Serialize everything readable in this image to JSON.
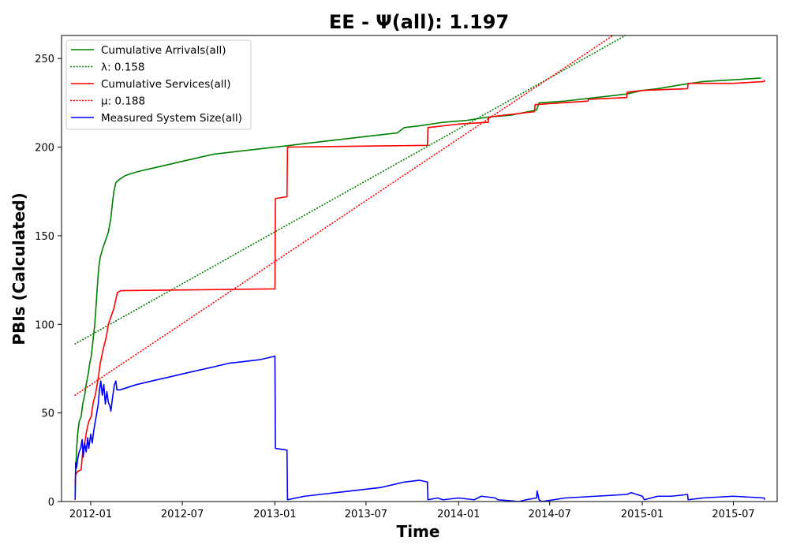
{
  "chart_data": {
    "type": "line",
    "title": "EE -  Ψ(all): 1.197",
    "xlabel": "Time",
    "ylabel": "PBIs (Calculated)",
    "xlim": [
      "2011-11-04",
      "2015-09-26"
    ],
    "ylim": [
      0,
      263
    ],
    "x_ticks": [
      "2012-01",
      "2012-07",
      "2013-01",
      "2013-07",
      "2014-01",
      "2014-07",
      "2015-01",
      "2015-07"
    ],
    "y_ticks": [
      0,
      50,
      100,
      150,
      200,
      250
    ],
    "grid": false,
    "legend_position": "top-left",
    "series": [
      {
        "name": "Cumulative Arrivals(all)",
        "color": "#008000",
        "style": "solid",
        "points": [
          [
            "2011-12-01",
            1
          ],
          [
            "2011-12-02",
            17
          ],
          [
            "2011-12-04",
            30
          ],
          [
            "2011-12-06",
            38
          ],
          [
            "2011-12-09",
            45
          ],
          [
            "2011-12-13",
            48
          ],
          [
            "2011-12-16",
            55
          ],
          [
            "2011-12-20",
            60
          ],
          [
            "2011-12-23",
            66
          ],
          [
            "2011-12-27",
            72
          ],
          [
            "2011-12-30",
            78
          ],
          [
            "2012-01-02",
            82
          ],
          [
            "2012-01-06",
            92
          ],
          [
            "2012-01-09",
            100
          ],
          [
            "2012-01-12",
            112
          ],
          [
            "2012-01-15",
            125
          ],
          [
            "2012-01-17",
            132
          ],
          [
            "2012-01-20",
            138
          ],
          [
            "2012-01-25",
            143
          ],
          [
            "2012-01-30",
            147
          ],
          [
            "2012-02-05",
            152
          ],
          [
            "2012-02-10",
            160
          ],
          [
            "2012-02-13",
            168
          ],
          [
            "2012-02-16",
            175
          ],
          [
            "2012-02-20",
            180
          ],
          [
            "2012-02-28",
            182
          ],
          [
            "2012-03-10",
            184
          ],
          [
            "2012-04-01",
            186
          ],
          [
            "2012-05-01",
            188
          ],
          [
            "2012-06-01",
            190
          ],
          [
            "2012-07-01",
            192
          ],
          [
            "2012-08-01",
            194
          ],
          [
            "2012-09-01",
            196
          ],
          [
            "2012-10-01",
            197
          ],
          [
            "2012-11-01",
            198
          ],
          [
            "2012-12-01",
            199
          ],
          [
            "2013-01-01",
            200
          ],
          [
            "2013-02-01",
            201
          ],
          [
            "2013-03-01",
            202
          ],
          [
            "2013-04-01",
            203
          ],
          [
            "2013-05-01",
            204
          ],
          [
            "2013-06-01",
            205
          ],
          [
            "2013-07-01",
            206
          ],
          [
            "2013-08-01",
            207
          ],
          [
            "2013-09-01",
            208
          ],
          [
            "2013-09-15",
            211
          ],
          [
            "2013-10-15",
            212
          ],
          [
            "2013-12-01",
            214
          ],
          [
            "2014-01-15",
            215
          ],
          [
            "2014-03-01",
            217
          ],
          [
            "2014-04-15",
            218
          ],
          [
            "2014-06-05",
            221
          ],
          [
            "2014-06-10",
            225
          ],
          [
            "2014-08-01",
            226
          ],
          [
            "2014-10-01",
            228
          ],
          [
            "2014-12-01",
            230
          ],
          [
            "2015-01-01",
            232
          ],
          [
            "2015-02-01",
            233
          ],
          [
            "2015-03-15",
            235
          ],
          [
            "2015-05-01",
            237
          ],
          [
            "2015-07-01",
            238
          ],
          [
            "2015-08-25",
            239
          ]
        ]
      },
      {
        "name": "λ: 0.158",
        "color": "#008000",
        "style": "dotted",
        "points": [
          [
            "2011-12-01",
            89
          ],
          [
            "2015-09-26",
            311
          ]
        ]
      },
      {
        "name": "Cumulative Services(all)",
        "color": "#ff0000",
        "style": "solid",
        "points": [
          [
            "2011-12-01",
            10
          ],
          [
            "2011-12-02",
            15
          ],
          [
            "2011-12-06",
            17
          ],
          [
            "2011-12-13",
            18
          ],
          [
            "2011-12-16",
            28
          ],
          [
            "2011-12-20",
            33
          ],
          [
            "2011-12-24",
            40
          ],
          [
            "2011-12-28",
            45
          ],
          [
            "2012-01-02",
            48
          ],
          [
            "2012-01-06",
            56
          ],
          [
            "2012-01-10",
            60
          ],
          [
            "2012-01-15",
            68
          ],
          [
            "2012-01-20",
            78
          ],
          [
            "2012-01-25",
            85
          ],
          [
            "2012-02-01",
            93
          ],
          [
            "2012-02-05",
            100
          ],
          [
            "2012-02-10",
            104
          ],
          [
            "2012-02-16",
            109
          ],
          [
            "2012-02-23",
            118
          ],
          [
            "2012-03-01",
            119
          ],
          [
            "2013-01-01",
            120
          ],
          [
            "2013-01-02",
            171
          ],
          [
            "2013-01-25",
            172
          ],
          [
            "2013-01-26",
            200
          ],
          [
            "2013-10-31",
            201
          ],
          [
            "2013-11-01",
            211
          ],
          [
            "2014-01-01",
            213
          ],
          [
            "2014-03-01",
            214
          ],
          [
            "2014-03-02",
            217
          ],
          [
            "2014-06-01",
            220
          ],
          [
            "2014-06-02",
            224
          ],
          [
            "2014-09-15",
            226
          ],
          [
            "2014-09-16",
            227
          ],
          [
            "2014-12-01",
            228
          ],
          [
            "2014-12-02",
            231
          ],
          [
            "2015-01-01",
            232
          ],
          [
            "2015-04-01",
            233
          ],
          [
            "2015-04-02",
            236
          ],
          [
            "2015-07-01",
            236
          ],
          [
            "2015-08-31",
            237
          ],
          [
            "2015-09-01",
            238
          ]
        ]
      },
      {
        "name": "μ: 0.188",
        "color": "#ff0000",
        "style": "dotted",
        "points": [
          [
            "2011-12-01",
            60
          ],
          [
            "2015-09-26",
            325
          ]
        ]
      },
      {
        "name": "Measured System Size(all)",
        "color": "#0000ff",
        "style": "solid",
        "points": [
          [
            "2011-12-01",
            1
          ],
          [
            "2011-12-02",
            22
          ],
          [
            "2011-12-04",
            19
          ],
          [
            "2011-12-06",
            24
          ],
          [
            "2011-12-09",
            28
          ],
          [
            "2011-12-12",
            30
          ],
          [
            "2011-12-15",
            35
          ],
          [
            "2011-12-17",
            25
          ],
          [
            "2011-12-20",
            33
          ],
          [
            "2011-12-23",
            28
          ],
          [
            "2011-12-26",
            36
          ],
          [
            "2011-12-28",
            30
          ],
          [
            "2012-01-01",
            38
          ],
          [
            "2012-01-04",
            33
          ],
          [
            "2012-01-07",
            40
          ],
          [
            "2012-01-10",
            45
          ],
          [
            "2012-01-13",
            50
          ],
          [
            "2012-01-16",
            55
          ],
          [
            "2012-01-18",
            62
          ],
          [
            "2012-01-21",
            68
          ],
          [
            "2012-01-24",
            60
          ],
          [
            "2012-01-27",
            66
          ],
          [
            "2012-01-30",
            55
          ],
          [
            "2012-02-02",
            62
          ],
          [
            "2012-02-05",
            56
          ],
          [
            "2012-02-08",
            54
          ],
          [
            "2012-02-10",
            51
          ],
          [
            "2012-02-14",
            60
          ],
          [
            "2012-02-17",
            66
          ],
          [
            "2012-02-20",
            68
          ],
          [
            "2012-02-22",
            63
          ],
          [
            "2012-02-28",
            63
          ],
          [
            "2012-03-10",
            64
          ],
          [
            "2012-04-01",
            66
          ],
          [
            "2012-05-01",
            68
          ],
          [
            "2012-06-01",
            70
          ],
          [
            "2012-07-01",
            72
          ],
          [
            "2012-08-01",
            74
          ],
          [
            "2012-09-01",
            76
          ],
          [
            "2012-10-01",
            78
          ],
          [
            "2012-11-01",
            79
          ],
          [
            "2012-12-01",
            80
          ],
          [
            "2013-01-01",
            82
          ],
          [
            "2013-01-02",
            30
          ],
          [
            "2013-01-25",
            29
          ],
          [
            "2013-01-26",
            1
          ],
          [
            "2013-03-01",
            3
          ],
          [
            "2013-04-01",
            4
          ],
          [
            "2013-06-01",
            6
          ],
          [
            "2013-08-01",
            8
          ],
          [
            "2013-09-15",
            11
          ],
          [
            "2013-10-15",
            12
          ],
          [
            "2013-10-31",
            11
          ],
          [
            "2013-11-01",
            1
          ],
          [
            "2013-11-20",
            2
          ],
          [
            "2013-12-01",
            1
          ],
          [
            "2014-01-01",
            2
          ],
          [
            "2014-02-01",
            1
          ],
          [
            "2014-02-15",
            3
          ],
          [
            "2014-03-15",
            2
          ],
          [
            "2014-03-20",
            1
          ],
          [
            "2014-05-01",
            0
          ],
          [
            "2014-05-15",
            1
          ],
          [
            "2014-06-05",
            2
          ],
          [
            "2014-06-06",
            6
          ],
          [
            "2014-06-10",
            1
          ],
          [
            "2014-06-15",
            0
          ],
          [
            "2014-08-01",
            2
          ],
          [
            "2014-10-01",
            3
          ],
          [
            "2014-12-01",
            4
          ],
          [
            "2014-12-10",
            5
          ],
          [
            "2015-01-01",
            3
          ],
          [
            "2015-01-05",
            1
          ],
          [
            "2015-02-01",
            3
          ],
          [
            "2015-03-01",
            3
          ],
          [
            "2015-04-01",
            4
          ],
          [
            "2015-04-02",
            1
          ],
          [
            "2015-05-01",
            2
          ],
          [
            "2015-07-01",
            3
          ],
          [
            "2015-08-31",
            2
          ],
          [
            "2015-09-01",
            1
          ]
        ]
      }
    ]
  }
}
